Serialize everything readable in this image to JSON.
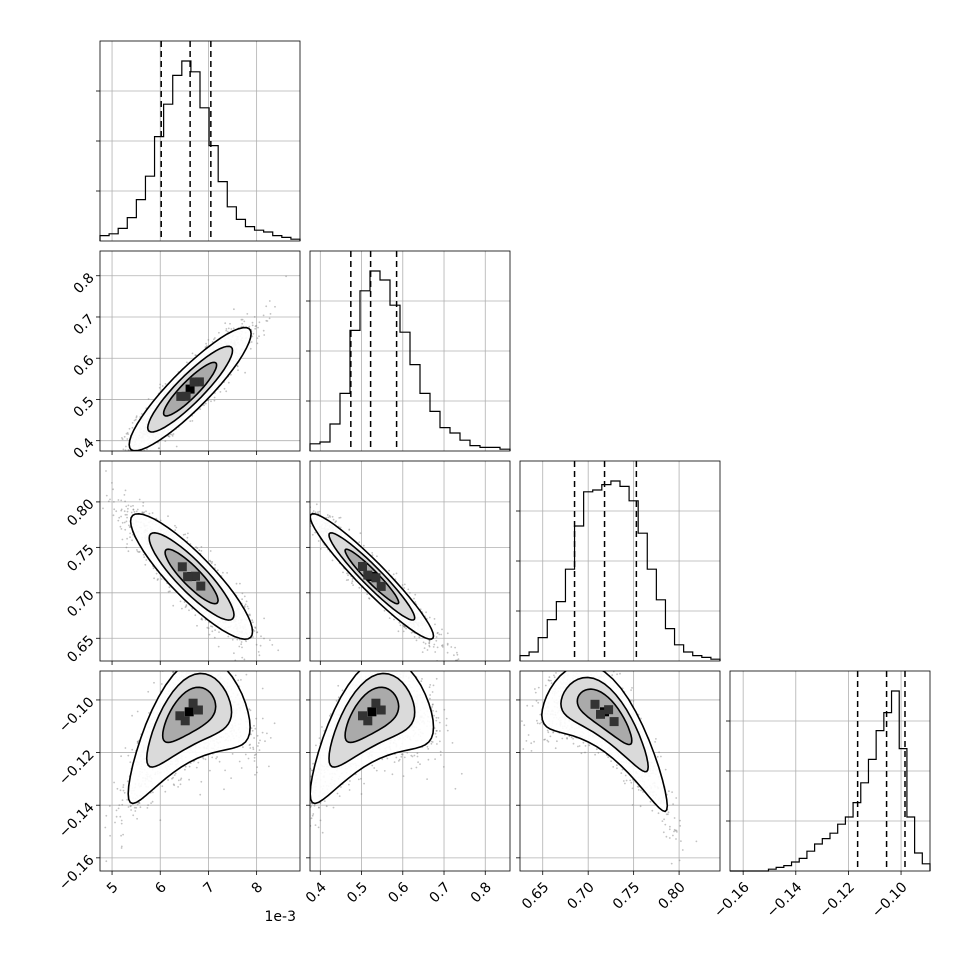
{
  "chart_data": {
    "type": "corner",
    "n_params": 4,
    "params": [
      {
        "range": [
          4.75,
          8.9
        ],
        "ticks": [
          5,
          6,
          7,
          8
        ],
        "tick_labels": [
          "5",
          "6",
          "7",
          "8"
        ],
        "axis_offset": "1e-3",
        "quantiles": [
          6.02,
          6.62,
          7.05
        ],
        "hist": [
          0.03,
          0.04,
          0.07,
          0.13,
          0.23,
          0.36,
          0.58,
          0.76,
          0.92,
          1.0,
          0.94,
          0.74,
          0.53,
          0.33,
          0.19,
          0.12,
          0.08,
          0.06,
          0.05,
          0.03,
          0.02,
          0.01
        ]
      },
      {
        "range": [
          0.375,
          0.86
        ],
        "ticks": [
          0.4,
          0.5,
          0.6,
          0.7,
          0.8
        ],
        "tick_labels": [
          "0.4",
          "0.5",
          "0.6",
          "0.7",
          "0.8"
        ],
        "quantiles": [
          0.474,
          0.522,
          0.585
        ],
        "hist": [
          0.04,
          0.05,
          0.15,
          0.32,
          0.67,
          0.89,
          1.0,
          0.95,
          0.81,
          0.66,
          0.48,
          0.32,
          0.22,
          0.13,
          0.1,
          0.06,
          0.03,
          0.02,
          0.02,
          0.01
        ]
      },
      {
        "range": [
          0.625,
          0.845
        ],
        "ticks": [
          0.65,
          0.7,
          0.75,
          0.8
        ],
        "tick_labels": [
          "0.65",
          "0.70",
          "0.75",
          "0.80"
        ],
        "quantiles": [
          0.685,
          0.718,
          0.753
        ],
        "hist": [
          0.03,
          0.05,
          0.13,
          0.23,
          0.33,
          0.51,
          0.75,
          0.94,
          0.95,
          0.98,
          1.0,
          0.97,
          0.89,
          0.71,
          0.51,
          0.34,
          0.18,
          0.09,
          0.05,
          0.03,
          0.02,
          0.01
        ]
      },
      {
        "range": [
          -0.165,
          -0.089
        ],
        "ticks": [
          -0.16,
          -0.14,
          -0.12,
          -0.1
        ],
        "tick_labels": [
          "−0.16",
          "−0.14",
          "−0.12",
          "−0.10"
        ],
        "quantiles": [
          -0.1165,
          -0.1055,
          -0.0985
        ],
        "hist": [
          0.0,
          0.0,
          0.0,
          0.0,
          0.0,
          0.01,
          0.02,
          0.03,
          0.05,
          0.07,
          0.11,
          0.15,
          0.18,
          0.21,
          0.26,
          0.3,
          0.38,
          0.49,
          0.62,
          0.78,
          0.88,
          1.0,
          0.68,
          0.3,
          0.1,
          0.04
        ]
      }
    ],
    "pairs": [
      {
        "x": 0,
        "y": 1,
        "mean": [
          6.62,
          0.525
        ],
        "sd": [
          0.55,
          0.065
        ],
        "rho": 0.9
      },
      {
        "x": 0,
        "y": 2,
        "mean": [
          6.65,
          0.718
        ],
        "sd": [
          0.55,
          0.03
        ],
        "rho": -0.88
      },
      {
        "x": 1,
        "y": 2,
        "mean": [
          0.525,
          0.718
        ],
        "sd": [
          0.065,
          0.03
        ],
        "rho": -0.95
      },
      {
        "x": 0,
        "y": 3,
        "mean": [
          6.6,
          -0.108
        ],
        "sd": [
          0.55,
          0.01
        ],
        "rho": 0.55,
        "bend": 1
      },
      {
        "x": 1,
        "y": 3,
        "mean": [
          0.525,
          -0.108
        ],
        "sd": [
          0.065,
          0.01
        ],
        "rho": 0.55,
        "bend": 1
      },
      {
        "x": 2,
        "y": 3,
        "mean": [
          0.718,
          -0.108
        ],
        "sd": [
          0.03,
          0.01
        ],
        "rho": -0.75,
        "bend": 1
      }
    ]
  }
}
